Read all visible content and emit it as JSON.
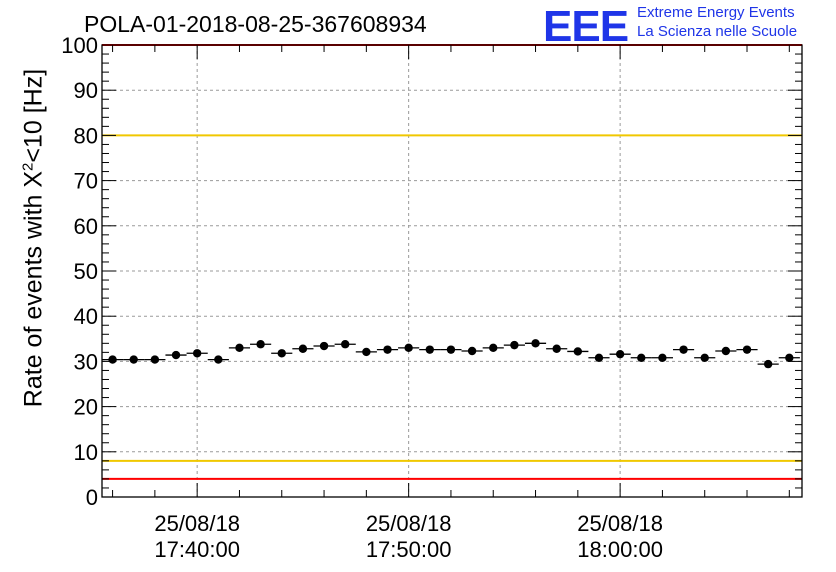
{
  "title": "POLA-01-2018-08-25-367608934",
  "logo": {
    "mark": "EEE",
    "line1": "Extreme Energy Events",
    "line2": "La Scienza nelle Scuole"
  },
  "colors": {
    "points": "#000000",
    "upper_limit": "#ff0000",
    "upper_warning": "#f0c800",
    "lower_warning": "#f0c800",
    "lower_limit": "#ff0000",
    "grid": "#999999",
    "logo": "#1f35e8"
  },
  "chart_data": {
    "type": "scatter",
    "title": "POLA-01-2018-08-25-367608934",
    "ylabel": {
      "prefix": "Rate of events with X",
      "sup": "2",
      "suffix": "<10 [Hz]"
    },
    "xlabel": "",
    "ylim": [
      0,
      100
    ],
    "yticks": [
      0,
      10,
      20,
      30,
      40,
      50,
      60,
      70,
      80,
      90,
      100
    ],
    "xlim_minutes": [
      -4.5,
      28.6
    ],
    "x_unit": "minutes after 25/08/18 17:40:00",
    "xtick_labels": [
      {
        "x": 0,
        "date": "25/08/18",
        "time": "17:40:00"
      },
      {
        "x": 10,
        "date": "25/08/18",
        "time": "17:50:00"
      },
      {
        "x": 20,
        "date": "25/08/18",
        "time": "18:00:00"
      }
    ],
    "grid": true,
    "reference_lines": [
      {
        "y": 100,
        "color": "#ff0000"
      },
      {
        "y": 80,
        "color": "#f0c800"
      },
      {
        "y": 8,
        "color": "#f0c800"
      },
      {
        "y": 4,
        "color": "#ff0000"
      }
    ],
    "bin_half_width_minutes": 0.5,
    "series": [
      {
        "x": [
          -4,
          -3,
          -2,
          -1,
          0,
          1,
          2,
          3,
          4,
          5,
          6,
          7,
          8,
          9,
          10,
          11,
          12,
          13,
          14,
          15,
          16,
          17,
          18,
          19,
          20,
          21,
          22,
          23,
          24,
          25,
          26,
          27,
          28
        ],
        "values": [
          30.4,
          30.4,
          30.4,
          31.4,
          31.8,
          30.4,
          33.0,
          33.8,
          31.8,
          32.8,
          33.4,
          33.8,
          32.1,
          32.6,
          33.0,
          32.6,
          32.6,
          32.3,
          33.0,
          33.6,
          34.0,
          32.8,
          32.2,
          30.8,
          31.6,
          30.8,
          30.8,
          32.6,
          30.8,
          32.3,
          32.6,
          29.4,
          30.8
        ]
      }
    ]
  }
}
